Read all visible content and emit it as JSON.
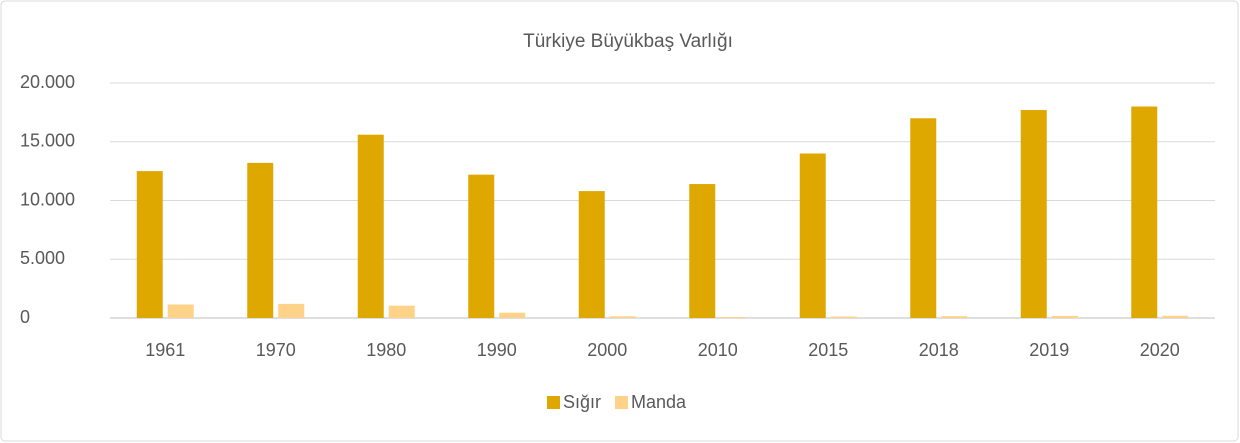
{
  "chart_data": {
    "type": "bar",
    "title": "Türkiye Büyükbaş Varlığı",
    "categories": [
      "1961",
      "1970",
      "1980",
      "1990",
      "2000",
      "2010",
      "2015",
      "2018",
      "2019",
      "2020"
    ],
    "series": [
      {
        "name": "Sığır",
        "color": "#dfa800",
        "values": [
          12500,
          13200,
          15600,
          12200,
          10800,
          11400,
          14000,
          17000,
          17700,
          18000
        ]
      },
      {
        "name": "Manda",
        "color": "#ffd28a",
        "values": [
          1150,
          1200,
          1050,
          450,
          150,
          85,
          120,
          160,
          180,
          190
        ]
      }
    ],
    "ylim": [
      0,
      20000
    ],
    "yticks": [
      0,
      {
        "value": 5000,
        "label": "5.000"
      },
      {
        "value": 10000,
        "label": "10.000"
      },
      {
        "value": 15000,
        "label": "15.000"
      },
      {
        "value": 20000,
        "label": "20.000"
      }
    ],
    "grid": true,
    "legend": "bottom"
  }
}
